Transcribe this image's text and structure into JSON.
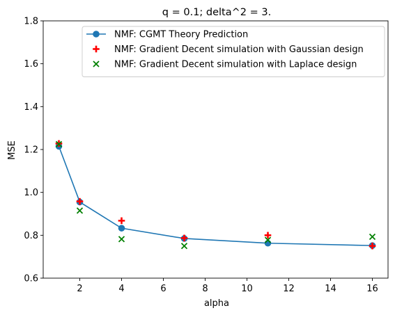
{
  "chart_data": {
    "type": "line",
    "title": "q = 0.1; delta^2 = 3.",
    "xlabel": "alpha",
    "ylabel": "MSE",
    "xlim": [
      0.25,
      16.75
    ],
    "ylim": [
      0.6,
      1.8
    ],
    "xticks": [
      2,
      4,
      6,
      8,
      10,
      12,
      14,
      16
    ],
    "yticks": [
      0.6,
      0.8,
      1.0,
      1.2,
      1.4,
      1.6,
      1.8
    ],
    "xtick_labels": [
      "2",
      "4",
      "6",
      "8",
      "10",
      "12",
      "14",
      "16"
    ],
    "ytick_labels": [
      "0.6",
      "0.8",
      "1.0",
      "1.2",
      "1.4",
      "1.6",
      "1.8"
    ],
    "grid": false,
    "legend_position": "top-right",
    "series": [
      {
        "name": "NMF: CGMT Theory Prediction",
        "style": "line-circle",
        "color": "#1f77b4",
        "x": [
          1,
          2,
          4,
          7,
          11,
          16
        ],
        "y": [
          1.215,
          0.955,
          0.833,
          0.785,
          0.763,
          0.752
        ]
      },
      {
        "name": "NMF: Gradient Decent simulation with Gaussian design",
        "style": "plus",
        "color": "#ff0000",
        "x": [
          1,
          2,
          4,
          7,
          11,
          16
        ],
        "y": [
          1.228,
          0.958,
          0.868,
          0.787,
          0.8,
          0.75
        ]
      },
      {
        "name": "NMF: Gradient Decent simulation with Laplace design",
        "style": "x",
        "color": "#008000",
        "x": [
          1,
          2,
          4,
          7,
          11,
          16
        ],
        "y": [
          1.225,
          0.915,
          0.782,
          0.75,
          0.778,
          0.793
        ]
      }
    ]
  }
}
